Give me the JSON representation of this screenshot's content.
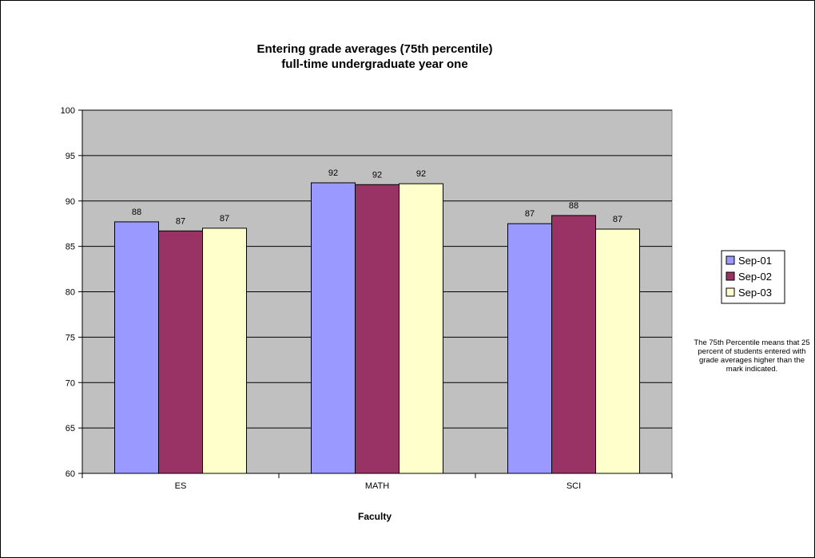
{
  "chart_data": {
    "type": "bar",
    "title": [
      "Entering grade averages (75th percentile)",
      "full-time undergraduate year one"
    ],
    "xlabel": "Faculty",
    "ylabel": "",
    "categories": [
      "ES",
      "MATH",
      "SCI"
    ],
    "ylim": [
      60,
      100
    ],
    "yticks": [
      60,
      65,
      70,
      75,
      80,
      85,
      90,
      95,
      100
    ],
    "grid": true,
    "legend_position": "right",
    "series": [
      {
        "name": "Sep-01",
        "color": "#9999ff",
        "values": [
          87.7,
          92.0,
          87.5
        ],
        "labels": [
          "88",
          "92",
          "87"
        ]
      },
      {
        "name": "Sep-02",
        "color": "#993366",
        "values": [
          86.7,
          91.8,
          88.4
        ],
        "labels": [
          "87",
          "92",
          "88"
        ]
      },
      {
        "name": "Sep-03",
        "color": "#ffffcc",
        "values": [
          87.0,
          91.9,
          86.9
        ],
        "labels": [
          "87",
          "92",
          "87"
        ]
      }
    ],
    "plot_background": "#c0c0c0",
    "annotation": "The 75th Percentile means that 25 percent of students entered with grade averages higher than the mark indicated."
  }
}
